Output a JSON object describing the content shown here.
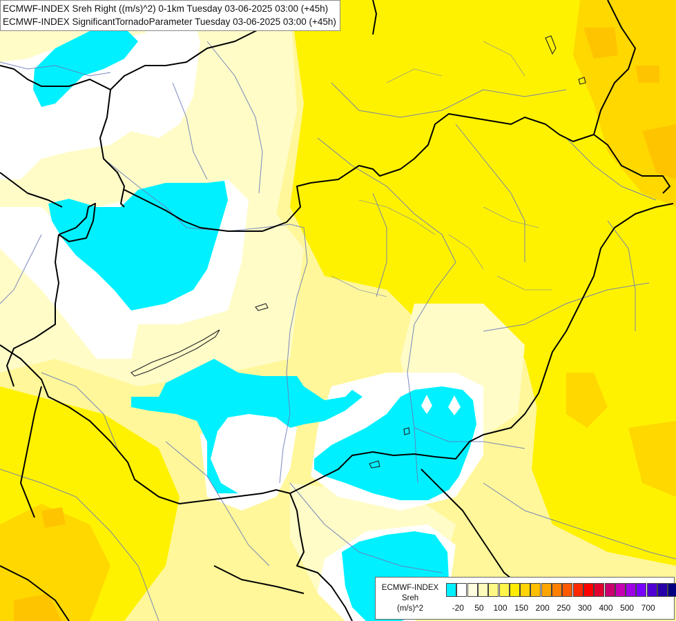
{
  "title": {
    "line1": "ECMWF-INDEX Sreh Right ((m/s)^2) 0-1km Tuesday 03-06-2025 03:00 (+45h)",
    "line2": "ECMWF-INDEX SignificantTornadoParameter Tuesday 03-06-2025 03:00 (+45h)"
  },
  "legend": {
    "title_line1": "ECMWF-INDEX",
    "title_line2": "Sreh",
    "title_line3": "(m/s)^2",
    "colors": [
      "#00f0ff",
      "#ffffff",
      "#fffde0",
      "#fffbbb",
      "#fff786",
      "#fff44a",
      "#ffec00",
      "#ffd400",
      "#ffbf00",
      "#ffa500",
      "#ff8000",
      "#ff5a00",
      "#ff2800",
      "#ff0000",
      "#e00030",
      "#c80070",
      "#c800b4",
      "#a000e6",
      "#7800ff",
      "#5000d2",
      "#2800aa",
      "#000080"
    ],
    "ticks": [
      "-20",
      "50",
      "100",
      "150",
      "200",
      "250",
      "300",
      "400",
      "500",
      "700"
    ]
  },
  "field_colors": {
    "cyan": "#00f0ff",
    "white": "#ffffff",
    "pale": "#fffcc8",
    "light": "#fff79a",
    "yellow": "#fff200",
    "gold": "#ffd800",
    "orange": "#ffc400"
  }
}
